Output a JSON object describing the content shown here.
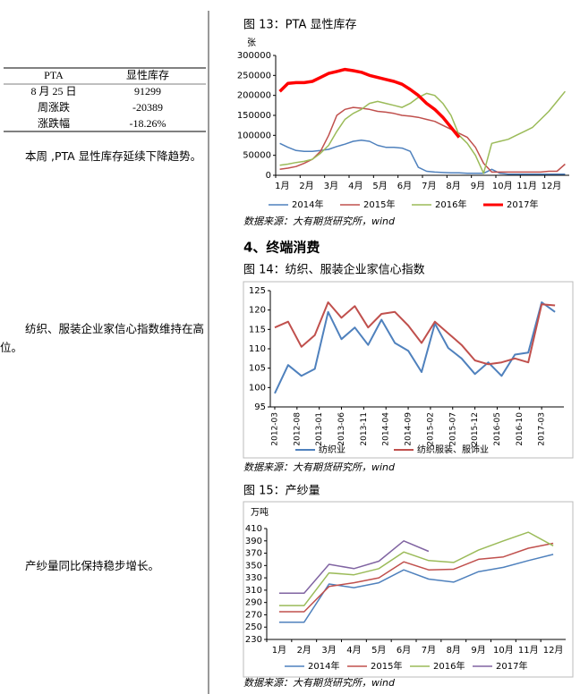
{
  "table": {
    "header": [
      "PTA",
      "显性库存"
    ],
    "rows": [
      [
        "8 月 25 日",
        "91299"
      ],
      [
        "周涨跌",
        "-20389"
      ],
      [
        "涨跌幅",
        "-18.26%"
      ]
    ]
  },
  "notes": [
    "本周 ,PTA 显性库存延续下降趋势。",
    "纺织、服装企业家信心指数维持在高位。",
    "产纱量同比保持稳步增长。"
  ],
  "heading": "4、终端消费",
  "chart_data": [
    {
      "type": "line",
      "title": "图 13：PTA 显性库存",
      "y_label": "张",
      "source": "数据来源：大有期货研究所，wind",
      "categories": [
        "1月",
        null,
        null,
        "2月",
        null,
        null,
        "3月",
        null,
        null,
        "4月",
        null,
        null,
        "5月",
        null,
        null,
        "6月",
        null,
        null,
        "7月",
        null,
        null,
        "8月",
        null,
        null,
        "9月",
        null,
        null,
        "10月",
        null,
        null,
        "11月",
        null,
        null,
        "12月",
        null,
        null
      ],
      "ylim": [
        0,
        300000
      ],
      "yticks": [
        0,
        50000,
        100000,
        150000,
        200000,
        250000,
        300000
      ],
      "series": [
        {
          "name": "2014年",
          "color": "#4f81bd",
          "values": [
            80000,
            70000,
            62000,
            60000,
            60000,
            62000,
            65000,
            72000,
            78000,
            85000,
            88000,
            85000,
            75000,
            70000,
            70000,
            68000,
            60000,
            20000,
            10000,
            8000,
            7000,
            6000,
            6000,
            5000,
            5000,
            5000,
            15000,
            5000,
            3000,
            3000,
            3000,
            3000,
            3000,
            3000,
            3000,
            3000
          ]
        },
        {
          "name": "2015年",
          "color": "#c0504d",
          "values": [
            15000,
            18000,
            22000,
            30000,
            40000,
            60000,
            100000,
            150000,
            165000,
            170000,
            168000,
            165000,
            160000,
            158000,
            155000,
            150000,
            148000,
            145000,
            140000,
            135000,
            125000,
            115000,
            105000,
            95000,
            70000,
            30000,
            8000,
            8000,
            8000,
            8000,
            8000,
            8000,
            8000,
            10000,
            10000,
            28000
          ]
        },
        {
          "name": "2016年",
          "color": "#9bbb59",
          "values": [
            25000,
            28000,
            32000,
            35000,
            40000,
            55000,
            75000,
            110000,
            140000,
            155000,
            165000,
            180000,
            185000,
            180000,
            175000,
            170000,
            180000,
            195000,
            205000,
            200000,
            180000,
            150000,
            100000,
            80000,
            50000,
            5000,
            80000,
            85000,
            90000,
            100000,
            110000,
            120000,
            140000,
            160000,
            185000,
            210000
          ]
        },
        {
          "name": "2017年",
          "color": "#ff0000",
          "values": [
            210000,
            230000,
            232000,
            232000,
            235000,
            245000,
            255000,
            260000,
            265000,
            262000,
            258000,
            250000,
            245000,
            240000,
            235000,
            228000,
            215000,
            200000,
            180000,
            165000,
            145000,
            120000,
            95000,
            null,
            null,
            null,
            null,
            null,
            null,
            null,
            null,
            null,
            null,
            null,
            null,
            null
          ]
        }
      ]
    },
    {
      "type": "line",
      "title": "图 14：纺织、服装企业家信心指数",
      "source": "数据来源：大有期货研究所，wind",
      "x": [
        "2012-03",
        "2012-06",
        "2012-09",
        "2012-12",
        "2013-03",
        "2013-06",
        "2013-09",
        "2013-12",
        "2014-03",
        "2014-06",
        "2014-09",
        "2014-12",
        "2015-03",
        "2015-06",
        "2015-09",
        "2015-12",
        "2016-03",
        "2016-06",
        "2016-09",
        "2016-12",
        "2017-03",
        "2017-06"
      ],
      "xlim": [
        "2012-02",
        "2017-08"
      ],
      "xticks": [
        "2012-03",
        "2012-08",
        "2013-01",
        "2013-06",
        "2013-11",
        "2014-04",
        "2014-09",
        "2015-02",
        "2015-07",
        "2015-12",
        "2016-05",
        "2016-10",
        "2017-03"
      ],
      "ylim": [
        95,
        125
      ],
      "yticks": [
        95,
        100,
        105,
        110,
        115,
        120,
        125
      ],
      "series": [
        {
          "name": "纺织业",
          "color": "#4f81bd",
          "values": [
            98.5,
            105.8,
            103,
            104.8,
            119.5,
            112.5,
            115.5,
            111,
            117.5,
            111.5,
            109.5,
            104,
            116.5,
            110.2,
            107.5,
            103.5,
            106.5,
            103,
            108.5,
            109,
            122,
            119.5
          ]
        },
        {
          "name": "纺织服装、服饰业",
          "color": "#c0504d",
          "values": [
            115.5,
            117,
            110.5,
            113.5,
            122,
            118,
            121,
            115.5,
            119,
            119.5,
            116,
            111.5,
            117,
            114,
            111,
            107,
            106,
            106.5,
            107.5,
            106.5,
            121.5,
            121.2
          ]
        }
      ]
    },
    {
      "type": "line",
      "title": "图 15：产纱量",
      "y_label": "万吨",
      "source": "数据来源：大有期货研究所，wind",
      "categories": [
        "1月",
        "2月",
        "3月",
        "4月",
        "5月",
        "6月",
        "7月",
        "8月",
        "9月",
        "10月",
        "11月",
        "12月"
      ],
      "ylim": [
        230,
        410
      ],
      "yticks": [
        230,
        250,
        270,
        290,
        310,
        330,
        350,
        370,
        390,
        410
      ],
      "series": [
        {
          "name": "2014年",
          "color": "#4f81bd",
          "values": [
            258,
            258,
            320,
            314,
            322,
            343,
            328,
            323,
            340,
            347,
            358,
            368
          ]
        },
        {
          "name": "2015年",
          "color": "#c0504d",
          "values": [
            275,
            275,
            316,
            322,
            330,
            356,
            343,
            344,
            360,
            364,
            378,
            386
          ]
        },
        {
          "name": "2016年",
          "color": "#9bbb59",
          "values": [
            285,
            285,
            338,
            335,
            345,
            372,
            358,
            355,
            375,
            390,
            404,
            382
          ]
        },
        {
          "name": "2017年",
          "color": "#8064a2",
          "values": [
            305,
            305,
            352,
            345,
            357,
            390,
            373,
            null,
            null,
            null,
            null,
            null
          ]
        }
      ]
    }
  ]
}
